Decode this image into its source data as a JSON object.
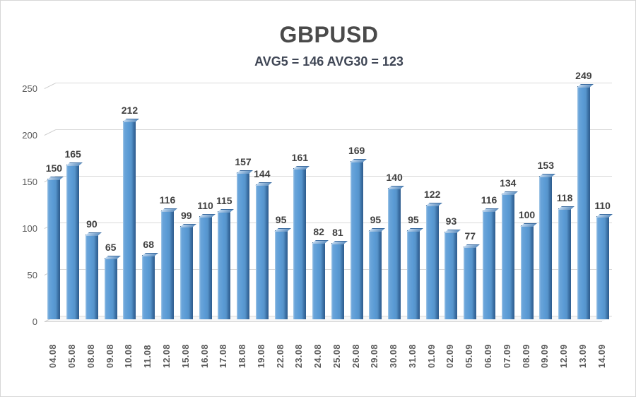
{
  "chart": {
    "title": "GBPUSD",
    "subtitle": "AVG5 = 146 AVG30 = 123"
  },
  "chart_data": {
    "type": "bar",
    "title": "GBPUSD",
    "subtitle": "AVG5 = 146 AVG30 = 123",
    "categories": [
      "04.08",
      "05.08",
      "08.08",
      "09.08",
      "10.08",
      "11.08",
      "12.08",
      "15.08",
      "16.08",
      "17.08",
      "18.08",
      "19.08",
      "22.08",
      "23.08",
      "24.08",
      "25.08",
      "26.08",
      "29.08",
      "30.08",
      "31.08",
      "01.09",
      "02.09",
      "05.09",
      "06.09",
      "07.09",
      "08.09",
      "09.09",
      "12.09",
      "13.09",
      "14.09"
    ],
    "values": [
      150,
      165,
      90,
      65,
      212,
      68,
      116,
      99,
      110,
      115,
      157,
      144,
      95,
      161,
      82,
      81,
      169,
      95,
      140,
      95,
      122,
      93,
      77,
      116,
      134,
      100,
      153,
      118,
      249,
      110
    ],
    "avg5": 146,
    "avg30": 123,
    "xlabel": "",
    "ylabel": "",
    "ylim": [
      0,
      250
    ],
    "yticks": [
      0,
      50,
      100,
      150,
      200,
      250
    ],
    "grid": true,
    "legend": "none",
    "style_3d": true,
    "colors": {
      "bar_fill": "#5B9BD5",
      "bar_side": "#2E5B8C",
      "bar_highlight": "#A9CBE9",
      "gridline": "#D9D9D9",
      "value_label": "#404040",
      "axis_label": "#595959",
      "title": "#4A4A4A",
      "subtitle": "#3F4655",
      "background": "#FFFFFF"
    }
  }
}
